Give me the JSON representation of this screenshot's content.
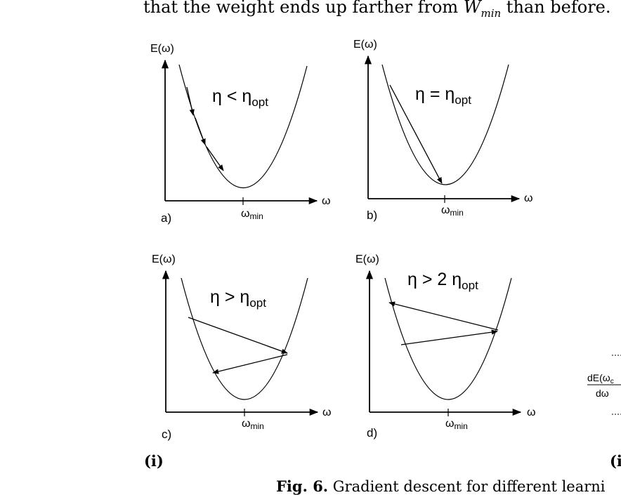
{
  "text_line": {
    "prefix": "that the weight ends up farther from ",
    "var": "W",
    "sub": "min",
    "suffix": " than before."
  },
  "panels": [
    {
      "id": "a",
      "label": "a)",
      "eta": "η < η",
      "eta_sub": "opt"
    },
    {
      "id": "b",
      "label": "b)",
      "eta": "η = η",
      "eta_sub": "opt"
    },
    {
      "id": "c",
      "label": "c)",
      "eta": "η > η",
      "eta_sub": "opt"
    },
    {
      "id": "d",
      "label": "d)",
      "eta": "η > 2 η",
      "eta_sub": "opt"
    }
  ],
  "axes": {
    "y_label": "E(ω)",
    "x_label": "ω",
    "min_label": "ω",
    "min_sub": "min"
  },
  "right_panel_fragment": {
    "numerator": "dE(ω",
    "numerator_sub": "c",
    "denominator": "dω"
  },
  "roman_labels": {
    "left": "(i)",
    "right": "(i"
  },
  "caption": {
    "fig": "Fig. 6.",
    "text": " Gradient descent for different learni"
  }
}
